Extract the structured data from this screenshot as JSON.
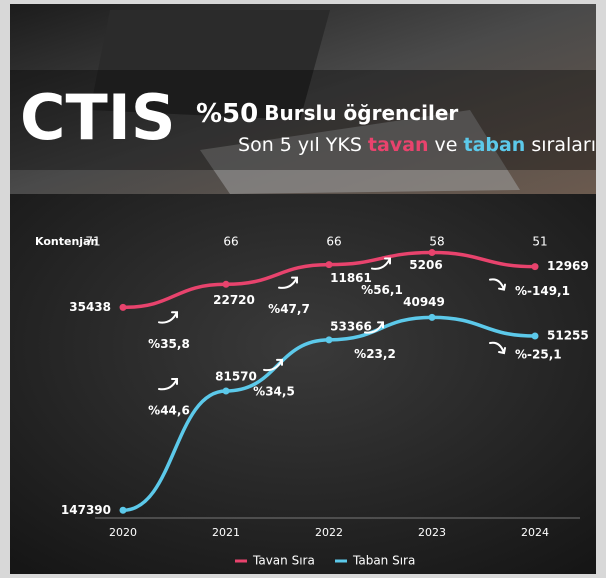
{
  "header": {
    "brand": "CTIS",
    "headline_percent": "%50",
    "headline_rest": "Burslu öğrenciler",
    "subtitle_parts": [
      "Son 5 yıl YKS",
      "tavan",
      "ve",
      "taban",
      "sıraları"
    ]
  },
  "chart_data": {
    "type": "line",
    "categories": [
      2020,
      2021,
      2022,
      2023,
      2024
    ],
    "capacity_label": "Kontenjan",
    "capacity": [
      71,
      66,
      66,
      58,
      51
    ],
    "ylim": [
      150000,
      -10000
    ],
    "series": [
      {
        "name": "Tavan Sıra",
        "color": "#e8436d",
        "values": [
          35438,
          22720,
          11861,
          5206,
          12969
        ],
        "change_labels": [
          null,
          "%35,8",
          "%47,7",
          "%56,1",
          "%-149,1"
        ]
      },
      {
        "name": "Taban Sıra",
        "color": "#5cc9ea",
        "values": [
          147390,
          81570,
          53366,
          40949,
          51255
        ],
        "change_labels": [
          null,
          "%44,6",
          "%34,5",
          "%23,2",
          "%-25,1"
        ]
      }
    ]
  }
}
